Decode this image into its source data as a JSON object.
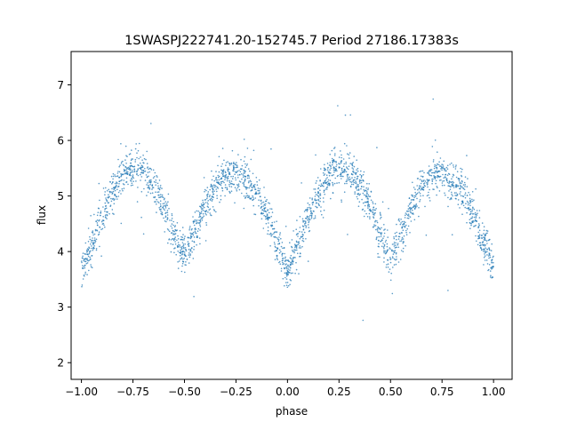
{
  "chart_data": {
    "type": "scatter",
    "title": "1SWASPJ222741.20-152745.7 Period 27186.17383s",
    "xlabel": "phase",
    "ylabel": "flux",
    "xlim": [
      -1.05,
      1.09
    ],
    "ylim": [
      1.7,
      7.6
    ],
    "xticks": [
      -1.0,
      -0.75,
      -0.5,
      -0.25,
      0.0,
      0.25,
      0.5,
      0.75,
      1.0
    ],
    "xtick_labels": [
      "−1.00",
      "−0.75",
      "−0.50",
      "−0.25",
      "0.00",
      "0.25",
      "0.50",
      "0.75",
      "1.00"
    ],
    "yticks": [
      2,
      3,
      4,
      5,
      6,
      7
    ],
    "ytick_labels": [
      "2",
      "3",
      "4",
      "5",
      "6",
      "7"
    ],
    "grid": false,
    "series": [
      {
        "color": "#1f77b4",
        "description_profile": {
          "x": [
            -1.0,
            -0.95,
            -0.9,
            -0.85,
            -0.8,
            -0.75,
            -0.7,
            -0.65,
            -0.6,
            -0.55,
            -0.5,
            -0.45,
            -0.4,
            -0.35,
            -0.3,
            -0.25,
            -0.2,
            -0.15,
            -0.1,
            -0.05,
            0.0,
            0.05,
            0.1,
            0.15,
            0.2,
            0.25,
            0.3,
            0.35,
            0.4,
            0.45,
            0.5,
            0.55,
            0.6,
            0.65,
            0.7,
            0.75,
            0.8,
            0.85,
            0.9,
            0.95,
            1.0
          ],
          "y": [
            3.7,
            4.1,
            4.6,
            5.05,
            5.35,
            5.5,
            5.45,
            5.2,
            4.8,
            4.3,
            3.95,
            4.3,
            4.8,
            5.15,
            5.35,
            5.4,
            5.3,
            5.05,
            4.65,
            4.15,
            3.7,
            4.1,
            4.6,
            5.05,
            5.35,
            5.5,
            5.45,
            5.2,
            4.8,
            4.3,
            3.95,
            4.3,
            4.8,
            5.15,
            5.35,
            5.4,
            5.3,
            5.05,
            4.65,
            4.15,
            3.7
          ]
        }
      }
    ]
  }
}
